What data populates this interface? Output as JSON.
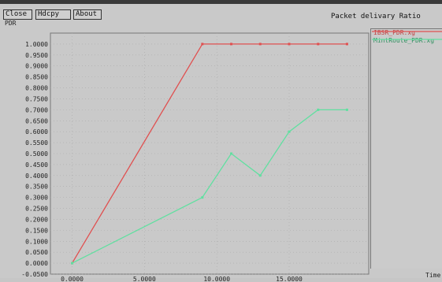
{
  "toolbar": {
    "close_label": "Close",
    "hdcopy_label": "Hdcpy",
    "about_label": "About"
  },
  "window_title": "Packet delivary Ratio",
  "colors": {
    "background": "#c9c9c9",
    "grid": "#aaaaaa",
    "series1": "#e05050",
    "series2": "#60e0a0"
  },
  "chart_data": {
    "type": "line",
    "title": "Packet delivary Ratio",
    "ylabel": "PDR",
    "xlabel": "Time",
    "xlim": [
      -1.5,
      20.5
    ],
    "ylim": [
      -0.05,
      1.05
    ],
    "x_ticks": [
      "0.0000",
      "5.0000",
      "10.0000",
      "15.0000"
    ],
    "x_tick_values": [
      0,
      5,
      10,
      15
    ],
    "y_ticks": [
      "-0.0500",
      "0.0000",
      "0.0500",
      "0.1000",
      "0.1500",
      "0.2000",
      "0.2500",
      "0.3000",
      "0.3500",
      "0.4000",
      "0.4500",
      "0.5000",
      "0.5500",
      "0.6000",
      "0.6500",
      "0.7000",
      "0.7500",
      "0.8000",
      "0.8500",
      "0.9000",
      "0.9500",
      "1.0000"
    ],
    "y_tick_values": [
      -0.05,
      0,
      0.05,
      0.1,
      0.15,
      0.2,
      0.25,
      0.3,
      0.35,
      0.4,
      0.45,
      0.5,
      0.55,
      0.6,
      0.65,
      0.7,
      0.75,
      0.8,
      0.85,
      0.9,
      0.95,
      1.0
    ],
    "legend_position": "right",
    "series": [
      {
        "name": "IBSR_PDR.xg",
        "color": "#e05050",
        "x": [
          0,
          9,
          11,
          13,
          15,
          17,
          19
        ],
        "y": [
          0,
          1,
          1,
          1,
          1,
          1,
          1
        ]
      },
      {
        "name": "MintRoute_PDR.xg",
        "color": "#60e0a0",
        "x": [
          0,
          9,
          11,
          13,
          15,
          17,
          19
        ],
        "y": [
          0,
          0.3,
          0.5,
          0.4,
          0.6,
          0.7,
          0.7
        ]
      }
    ]
  }
}
